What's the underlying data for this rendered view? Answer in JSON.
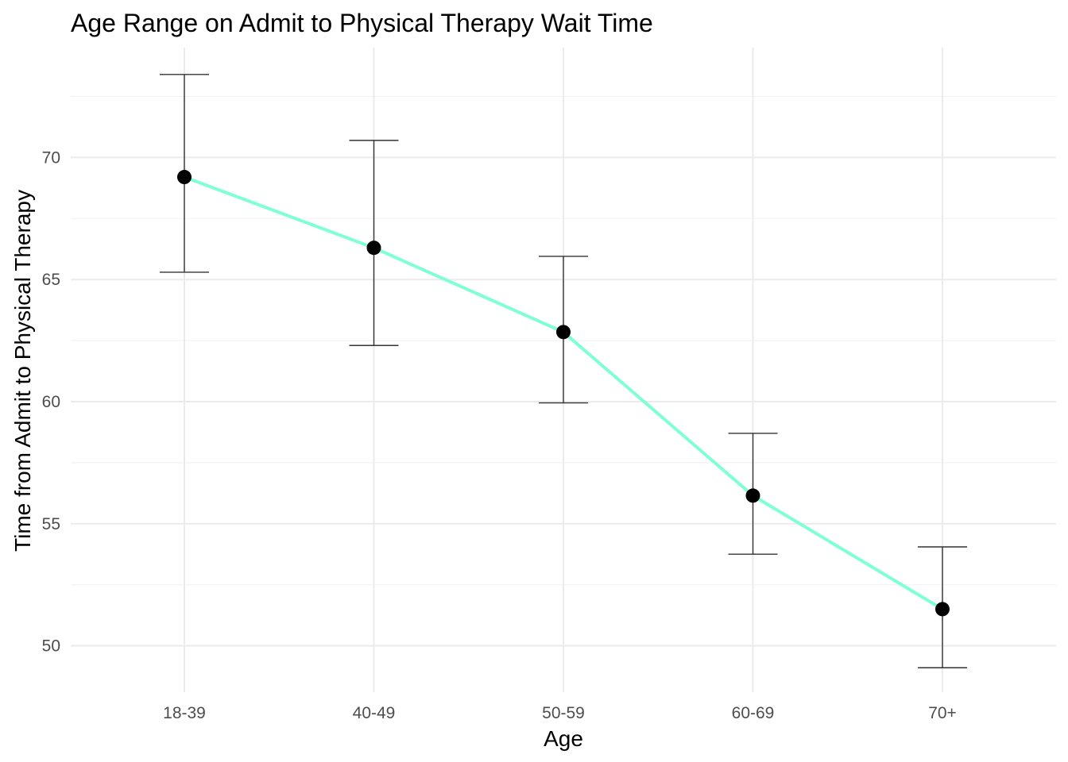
{
  "chart_data": {
    "type": "line",
    "title": "Age Range on Admit to Physical Therapy Wait Time",
    "xlabel": "Age",
    "ylabel": "Time from Admit to Physical Therapy",
    "categories": [
      "18-39",
      "40-49",
      "50-59",
      "60-69",
      "70+"
    ],
    "series": [
      {
        "values": [
          69.2,
          66.3,
          62.85,
          56.15,
          51.5
        ],
        "error_low": [
          65.3,
          62.3,
          59.95,
          53.75,
          49.1
        ],
        "error_high": [
          73.4,
          70.7,
          65.95,
          58.7,
          54.05
        ],
        "line_color": "#7fffd4",
        "point_color": "#000000"
      }
    ],
    "ylim": [
      48.1,
      74.5
    ],
    "y_ticks": [
      50,
      55,
      60,
      65,
      70
    ],
    "y_tick_labels": [
      "50",
      "55",
      "60",
      "65",
      "70"
    ],
    "grid": true,
    "legend": "none"
  }
}
